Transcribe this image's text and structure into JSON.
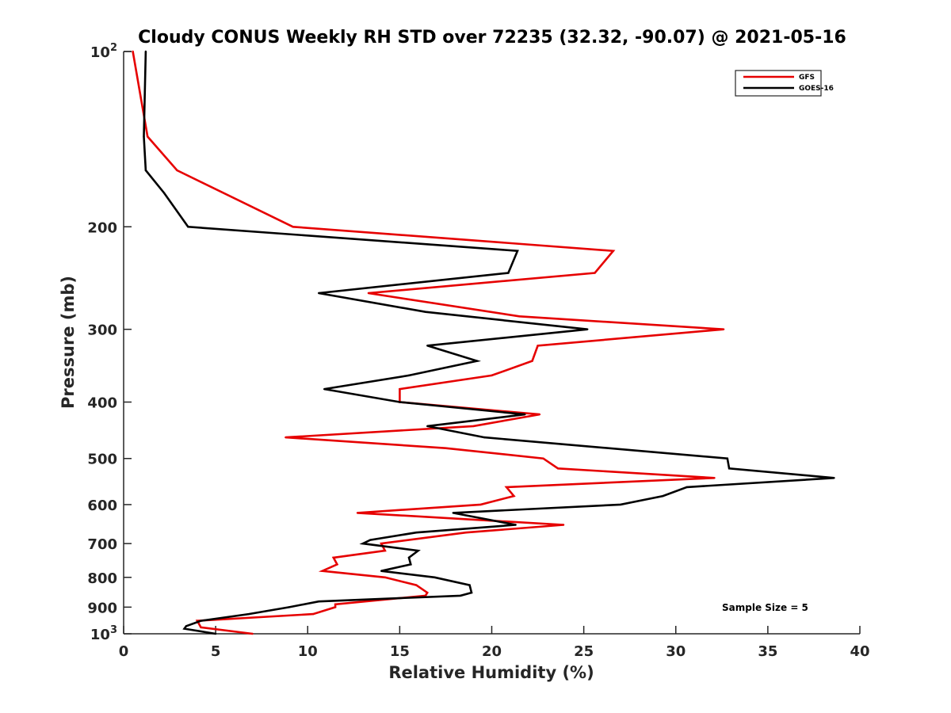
{
  "chart_data": {
    "type": "line",
    "title": "Cloudy CONUS Weekly RH STD over 72235 (32.32, -90.07) @ 2021-05-16",
    "xlabel": "Relative Humidity (%)",
    "ylabel": "Pressure (mb)",
    "xlim": [
      0,
      40
    ],
    "ylim": [
      100,
      1000
    ],
    "yscale": "log",
    "yreversed": true,
    "grid": false,
    "xticks": [
      0,
      5,
      10,
      15,
      20,
      25,
      30,
      35,
      40
    ],
    "xtick_labels": [
      "0",
      "5",
      "10",
      "15",
      "20",
      "25",
      "30",
      "35",
      "40"
    ],
    "yticks": [
      {
        "value": 100,
        "base": "10",
        "exp": "2"
      },
      {
        "value": 200,
        "label": "200"
      },
      {
        "value": 300,
        "label": "300"
      },
      {
        "value": 400,
        "label": "400"
      },
      {
        "value": 500,
        "label": "500"
      },
      {
        "value": 600,
        "label": "600"
      },
      {
        "value": 700,
        "label": "700"
      },
      {
        "value": 800,
        "label": "800"
      },
      {
        "value": 900,
        "label": "900"
      },
      {
        "value": 1000,
        "base": "10",
        "exp": "3"
      }
    ],
    "legend_position": "top-right",
    "annotation": "Sample Size = 5",
    "series": [
      {
        "name": "GFS",
        "color": "#e60000",
        "points": [
          [
            0.5,
            100
          ],
          [
            1.3,
            140
          ],
          [
            2.9,
            160
          ],
          [
            9.2,
            200
          ],
          [
            26.6,
            220
          ],
          [
            25.6,
            240
          ],
          [
            13.3,
            260
          ],
          [
            21.5,
            285
          ],
          [
            32.6,
            300
          ],
          [
            22.5,
            320
          ],
          [
            22.2,
            340
          ],
          [
            20.0,
            360
          ],
          [
            15.0,
            380
          ],
          [
            15.0,
            400
          ],
          [
            22.6,
            420
          ],
          [
            19.0,
            440
          ],
          [
            8.8,
            460
          ],
          [
            17.5,
            480
          ],
          [
            22.8,
            500
          ],
          [
            23.6,
            520
          ],
          [
            32.1,
            540
          ],
          [
            20.8,
            560
          ],
          [
            21.2,
            580
          ],
          [
            19.4,
            600
          ],
          [
            12.7,
            620
          ],
          [
            23.9,
            650
          ],
          [
            18.6,
            670
          ],
          [
            14.0,
            700
          ],
          [
            14.2,
            720
          ],
          [
            11.4,
            740
          ],
          [
            11.6,
            760
          ],
          [
            10.8,
            780
          ],
          [
            14.2,
            800
          ],
          [
            15.9,
            825
          ],
          [
            16.5,
            850
          ],
          [
            16.4,
            860
          ],
          [
            11.5,
            890
          ],
          [
            11.5,
            900
          ],
          [
            10.3,
            925
          ],
          [
            4.0,
            950
          ],
          [
            4.2,
            975
          ],
          [
            7.0,
            1000
          ]
        ]
      },
      {
        "name": "GOES-16",
        "color": "#000000",
        "points": [
          [
            1.2,
            100
          ],
          [
            1.1,
            140
          ],
          [
            1.2,
            160
          ],
          [
            2.2,
            175
          ],
          [
            3.5,
            200
          ],
          [
            21.4,
            220
          ],
          [
            20.9,
            240
          ],
          [
            10.6,
            260
          ],
          [
            16.4,
            280
          ],
          [
            25.2,
            300
          ],
          [
            16.5,
            320
          ],
          [
            19.2,
            340
          ],
          [
            15.5,
            360
          ],
          [
            10.9,
            380
          ],
          [
            15.0,
            400
          ],
          [
            21.8,
            420
          ],
          [
            16.5,
            440
          ],
          [
            19.6,
            460
          ],
          [
            32.8,
            500
          ],
          [
            32.9,
            520
          ],
          [
            38.6,
            540
          ],
          [
            30.6,
            560
          ],
          [
            29.3,
            580
          ],
          [
            27.0,
            600
          ],
          [
            17.9,
            620
          ],
          [
            21.3,
            650
          ],
          [
            15.9,
            670
          ],
          [
            13.4,
            690
          ],
          [
            13.0,
            700
          ],
          [
            16.0,
            720
          ],
          [
            15.5,
            740
          ],
          [
            15.6,
            760
          ],
          [
            14.0,
            780
          ],
          [
            16.9,
            800
          ],
          [
            18.8,
            825
          ],
          [
            18.9,
            850
          ],
          [
            18.3,
            860
          ],
          [
            10.6,
            880
          ],
          [
            9.0,
            900
          ],
          [
            6.8,
            925
          ],
          [
            4.2,
            950
          ],
          [
            3.4,
            970
          ],
          [
            3.3,
            980
          ],
          [
            5.0,
            1000
          ]
        ]
      }
    ]
  }
}
